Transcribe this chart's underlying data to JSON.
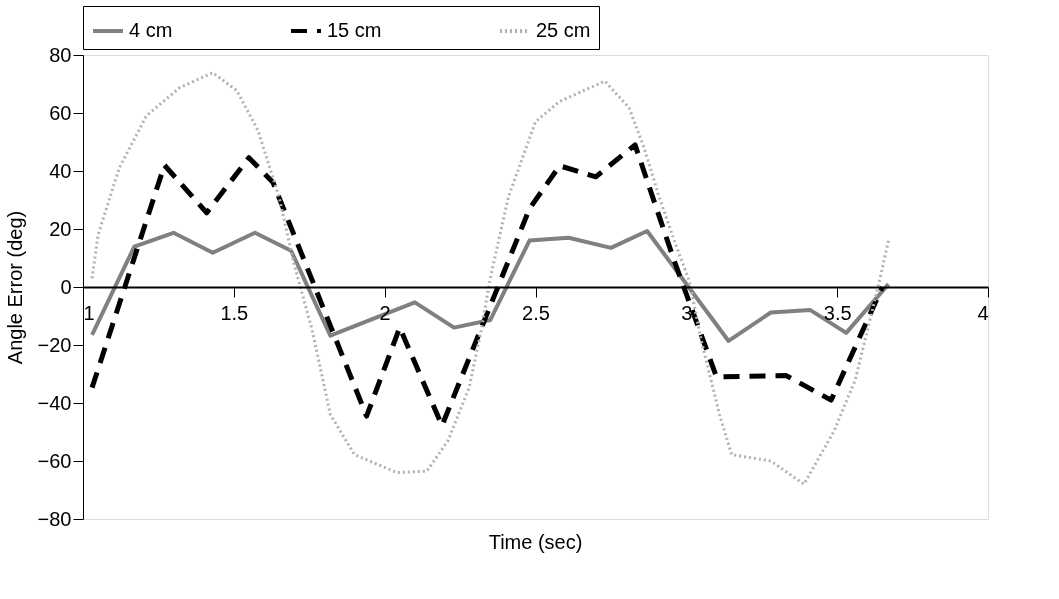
{
  "chart_data": {
    "type": "line",
    "xlabel": "Time (sec)",
    "ylabel": "Angle Error (deg)",
    "xlim": [
      1,
      4
    ],
    "xticks": [
      1,
      1.5,
      2,
      2.5,
      3,
      3.5,
      4
    ],
    "ylim": [
      -80,
      80
    ],
    "yticks": [
      -80,
      -60,
      -40,
      -20,
      0,
      20,
      40,
      60,
      80
    ],
    "grid": false,
    "legend": "top",
    "marker": "none",
    "series": [
      {
        "name": "4 cm",
        "color": "#808080",
        "line_style": "solid",
        "x": [
          1.03,
          1.17,
          1.3,
          1.43,
          1.57,
          1.69,
          1.82,
          2.1,
          2.23,
          2.35,
          2.48,
          2.61,
          2.75,
          2.87,
          3.14,
          3.28,
          3.41,
          3.53,
          3.67
        ],
        "values": [
          -16.5,
          13.9,
          18.7,
          11.8,
          18.7,
          12.5,
          -16.8,
          -5.3,
          -14,
          -11.4,
          16,
          17,
          13.5,
          19.3,
          -18.6,
          -8.8,
          -7.9,
          -15.8,
          1
        ]
      },
      {
        "name": "15 cm",
        "color": "#000000",
        "line_style": "dashed",
        "x": [
          1.03,
          1.27,
          1.41,
          1.55,
          1.63,
          1.94,
          2.05,
          2.19,
          2.48,
          2.58,
          2.7,
          2.83,
          2.96,
          3.1,
          3.33,
          3.48,
          3.65
        ],
        "values": [
          -34.7,
          42,
          25.6,
          44.6,
          36,
          -44.5,
          -14,
          -47.8,
          27,
          41.8,
          38,
          49,
          9,
          -31,
          -30.5,
          -39,
          0
        ]
      },
      {
        "name": "25 cm",
        "color": "#b0b0b0",
        "line_style": "dotted",
        "x": [
          1.03,
          1.05,
          1.12,
          1.21,
          1.32,
          1.43,
          1.51,
          1.58,
          1.65,
          1.7,
          1.76,
          1.82,
          1.9,
          2.04,
          2.14,
          2.21,
          2.28,
          2.32,
          2.35,
          2.41,
          2.5,
          2.58,
          2.73,
          2.81,
          2.86,
          2.91,
          2.96,
          3.01,
          3.05,
          3.11,
          3.15,
          3.28,
          3.39,
          3.49,
          3.56,
          3.6,
          3.64,
          3.67
        ],
        "values": [
          3,
          18,
          41,
          59,
          68.7,
          73.9,
          67.7,
          54,
          31,
          7.7,
          -15,
          -44,
          -57.8,
          -64,
          -63.5,
          -53,
          -34.7,
          -15,
          3,
          31,
          57,
          64,
          71,
          61.8,
          48,
          31,
          16,
          2,
          -18.6,
          -44,
          -57.8,
          -60,
          -68,
          -49.6,
          -32,
          -15,
          2,
          16
        ]
      }
    ]
  }
}
